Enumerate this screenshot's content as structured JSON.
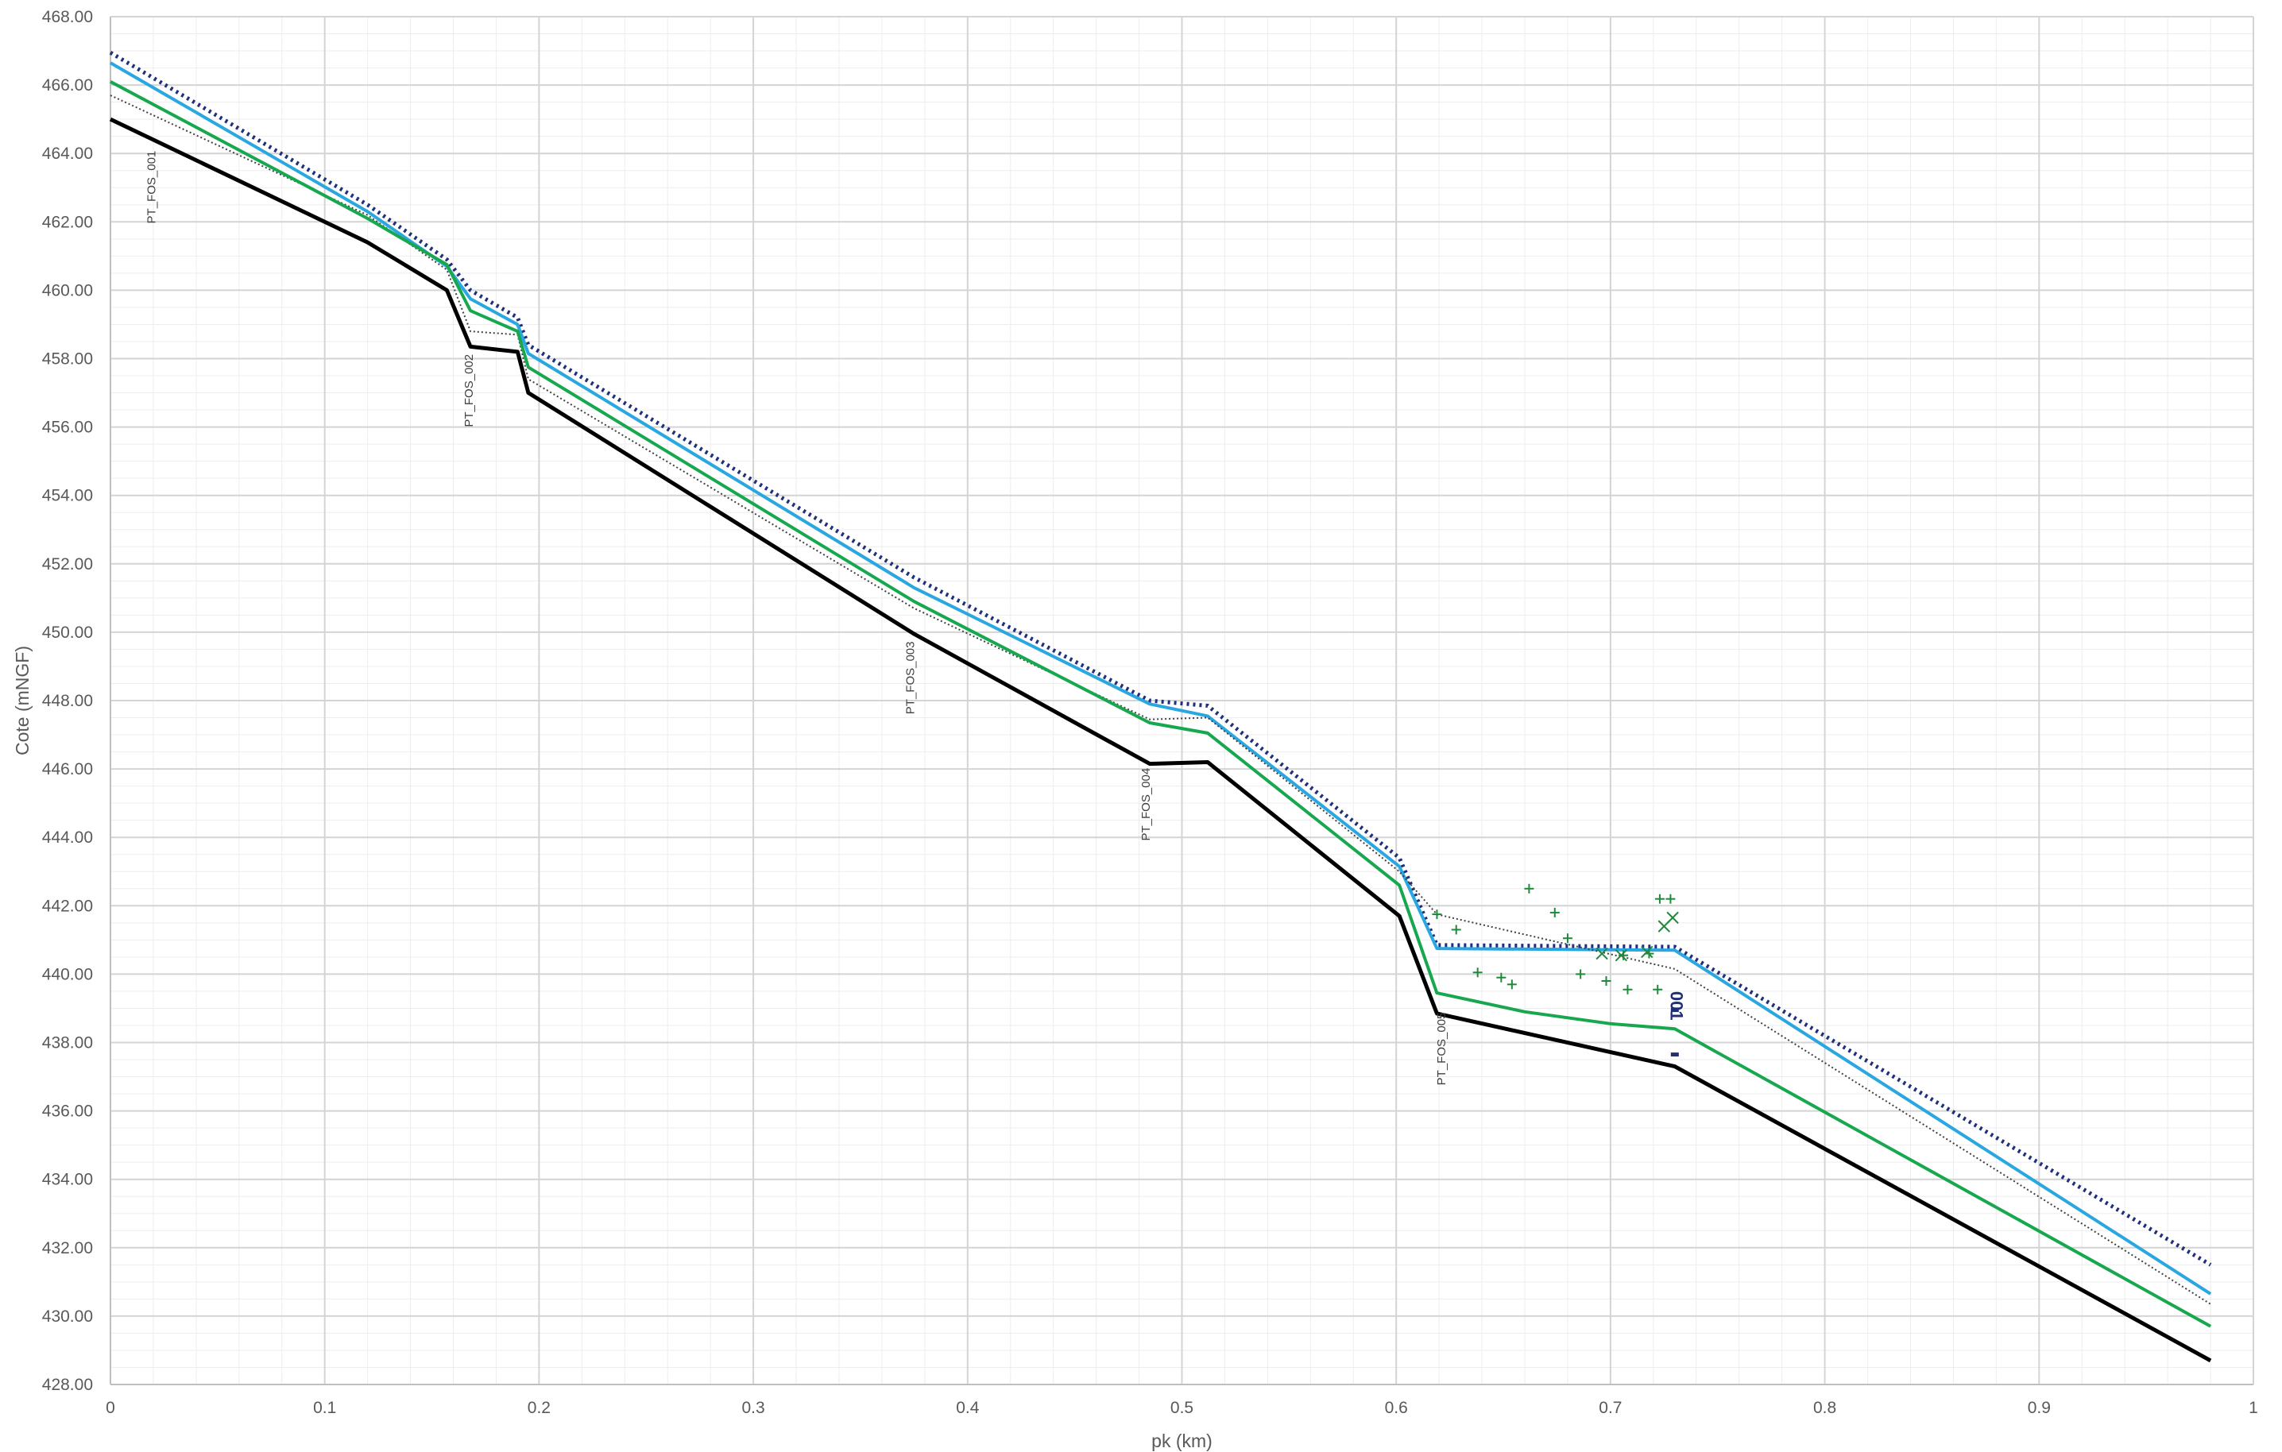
{
  "chart_data": {
    "type": "line",
    "title": "",
    "xlabel": "pk (km)",
    "ylabel": "Cote (mNGF)",
    "xlim": [
      0,
      1
    ],
    "ylim": [
      428,
      468
    ],
    "x_ticks": [
      0,
      0.1,
      0.2,
      0.3,
      0.4,
      0.5,
      0.6,
      0.7,
      0.8,
      0.9,
      1
    ],
    "x_tick_labels": [
      "0",
      "0.1",
      "0.2",
      "0.3",
      "0.4",
      "0.5",
      "0.6",
      "0.7",
      "0.8",
      "0.9",
      "1"
    ],
    "y_ticks": [
      428,
      430,
      432,
      434,
      436,
      438,
      440,
      442,
      444,
      446,
      448,
      450,
      452,
      454,
      456,
      458,
      460,
      462,
      464,
      466,
      468
    ],
    "y_tick_labels": [
      "428.00",
      "430.00",
      "432.00",
      "434.00",
      "436.00",
      "438.00",
      "440.00",
      "442.00",
      "444.00",
      "446.00",
      "448.00",
      "450.00",
      "452.00",
      "454.00",
      "456.00",
      "458.00",
      "460.00",
      "462.00",
      "464.00",
      "466.00",
      "468.00"
    ],
    "grid": true,
    "legend": "none",
    "series": [
      {
        "style": "dotted-thick",
        "color": "#1f2f7a",
        "points": [
          [
            0,
            466.95
          ],
          [
            0.12,
            462.5
          ],
          [
            0.157,
            460.9
          ],
          [
            0.168,
            460.0
          ],
          [
            0.19,
            459.2
          ],
          [
            0.195,
            458.4
          ],
          [
            0.375,
            451.6
          ],
          [
            0.485,
            448.0
          ],
          [
            0.512,
            447.85
          ],
          [
            0.6015,
            443.4
          ],
          [
            0.619,
            440.85
          ],
          [
            0.73,
            440.8
          ],
          [
            0.98,
            431.5
          ]
        ]
      },
      {
        "style": "solid",
        "color": "#2aa7e0",
        "points": [
          [
            0,
            466.65
          ],
          [
            0.12,
            462.3
          ],
          [
            0.157,
            460.7
          ],
          [
            0.168,
            459.75
          ],
          [
            0.19,
            459.0
          ],
          [
            0.195,
            458.15
          ],
          [
            0.375,
            451.3
          ],
          [
            0.485,
            447.9
          ],
          [
            0.512,
            447.55
          ],
          [
            0.6015,
            443.15
          ],
          [
            0.619,
            440.75
          ],
          [
            0.73,
            440.7
          ],
          [
            0.98,
            430.65
          ]
        ]
      },
      {
        "style": "dotted-thin",
        "color": "#404040",
        "points": [
          [
            0,
            465.7
          ],
          [
            0.12,
            462.2
          ],
          [
            0.157,
            460.6
          ],
          [
            0.168,
            458.8
          ],
          [
            0.19,
            458.7
          ],
          [
            0.195,
            457.4
          ],
          [
            0.375,
            450.7
          ],
          [
            0.485,
            447.45
          ],
          [
            0.512,
            447.5
          ],
          [
            0.6015,
            443.0
          ],
          [
            0.619,
            441.75
          ],
          [
            0.73,
            440.15
          ],
          [
            0.98,
            430.35
          ]
        ]
      },
      {
        "style": "solid",
        "color": "#17a84f",
        "points": [
          [
            0,
            466.1
          ],
          [
            0.12,
            462.1
          ],
          [
            0.157,
            460.75
          ],
          [
            0.168,
            459.4
          ],
          [
            0.19,
            458.8
          ],
          [
            0.195,
            457.75
          ],
          [
            0.375,
            450.9
          ],
          [
            0.485,
            447.35
          ],
          [
            0.512,
            447.05
          ],
          [
            0.6015,
            442.6
          ],
          [
            0.619,
            439.45
          ],
          [
            0.66,
            438.9
          ],
          [
            0.7,
            438.55
          ],
          [
            0.73,
            438.4
          ],
          [
            0.98,
            429.7
          ]
        ]
      },
      {
        "style": "solid-thick",
        "color": "#000000",
        "points": [
          [
            0,
            465.0
          ],
          [
            0.12,
            461.4
          ],
          [
            0.157,
            460.0
          ],
          [
            0.168,
            458.35
          ],
          [
            0.19,
            458.2
          ],
          [
            0.195,
            457.0
          ],
          [
            0.375,
            449.95
          ],
          [
            0.485,
            446.15
          ],
          [
            0.512,
            446.2
          ],
          [
            0.6015,
            441.7
          ],
          [
            0.619,
            438.85
          ],
          [
            0.73,
            437.3
          ],
          [
            0.98,
            428.7
          ]
        ]
      }
    ],
    "scatter_plus": {
      "color": "#1e8a3a",
      "points": [
        [
          0.619,
          441.75
        ],
        [
          0.628,
          441.3
        ],
        [
          0.638,
          440.05
        ],
        [
          0.649,
          439.9
        ],
        [
          0.654,
          439.7
        ],
        [
          0.662,
          442.5
        ],
        [
          0.674,
          441.8
        ],
        [
          0.68,
          441.05
        ],
        [
          0.686,
          440.0
        ],
        [
          0.698,
          439.8
        ],
        [
          0.706,
          440.55
        ],
        [
          0.708,
          439.55
        ],
        [
          0.718,
          440.6
        ],
        [
          0.722,
          439.55
        ],
        [
          0.723,
          442.2
        ],
        [
          0.728,
          442.2
        ]
      ]
    },
    "scatter_x": {
      "color": "#1e8a3a",
      "points": [
        [
          0.696,
          440.6
        ],
        [
          0.705,
          440.55
        ],
        [
          0.717,
          440.65
        ],
        [
          0.725,
          441.4
        ],
        [
          0.729,
          441.65
        ]
      ]
    },
    "blue_dashes": {
      "color": "#1f2f7a",
      "points": [
        [
          0.73,
          438.95
        ],
        [
          0.73,
          437.65
        ]
      ]
    },
    "annotations": [
      {
        "text": "PT_FOS_001",
        "x": 0.021,
        "y": 461.95
      },
      {
        "text": "PT_FOS_002",
        "x": 0.169,
        "y": 456.0
      },
      {
        "text": "PT_FOS_003",
        "x": 0.375,
        "y": 447.6
      },
      {
        "text": "PT_FOS_004",
        "x": 0.485,
        "y": 443.9
      },
      {
        "text": "PT_FOS_005",
        "x": 0.623,
        "y": 436.75
      }
    ],
    "blue_label": {
      "text": "001",
      "x": 0.728,
      "y": 439.5
    }
  }
}
